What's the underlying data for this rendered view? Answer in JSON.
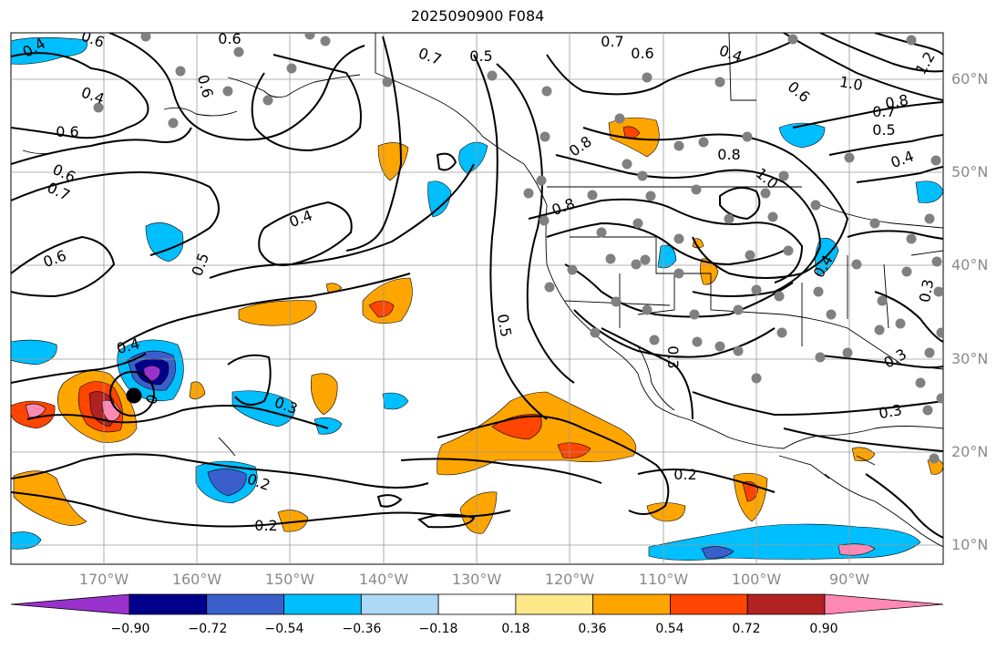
{
  "title": "2025090900 F084",
  "lat_labels": [
    "60°N",
    "50°N",
    "40°N",
    "30°N",
    "20°N",
    "10°N"
  ],
  "lon_labels": [
    "170°W",
    "160°W",
    "150°W",
    "140°W",
    "130°W",
    "120°W",
    "110°W",
    "100°W",
    "90°W"
  ],
  "colorbar": {
    "ticks": [
      "−0.90",
      "−0.72",
      "−0.54",
      "−0.36",
      "−0.18",
      "0.18",
      "0.36",
      "0.54",
      "0.72",
      "0.90"
    ],
    "colors": [
      "#9932cc",
      "#00008b",
      "#3a5fcd",
      "#00bfff",
      "#add8f6",
      "#ffffff",
      "#ffe88a",
      "#ffa500",
      "#ff4500",
      "#b22222",
      "#ff89b4"
    ]
  },
  "contour_labels": [
    {
      "text": "0.4"
    },
    {
      "text": "0.6"
    },
    {
      "text": "0.6"
    },
    {
      "text": "0.7"
    },
    {
      "text": "0.5"
    },
    {
      "text": "0.7"
    },
    {
      "text": "0.6"
    },
    {
      "text": "0.4"
    },
    {
      "text": "0.6"
    },
    {
      "text": "1.0"
    },
    {
      "text": "1.2"
    },
    {
      "text": "0.8"
    },
    {
      "text": "0.7"
    },
    {
      "text": "0.5"
    },
    {
      "text": "0.4"
    },
    {
      "text": "0.4"
    },
    {
      "text": "0.6"
    },
    {
      "text": "0.6"
    },
    {
      "text": "0.7"
    },
    {
      "text": "0.6"
    },
    {
      "text": "0.4"
    },
    {
      "text": "0.5"
    },
    {
      "text": "0.6"
    },
    {
      "text": "0.8"
    },
    {
      "text": "0.8"
    },
    {
      "text": "0.8"
    },
    {
      "text": "1.0"
    },
    {
      "text": "0.5"
    },
    {
      "text": "0.4"
    },
    {
      "text": "0.3"
    },
    {
      "text": "0.3"
    },
    {
      "text": "0.3"
    },
    {
      "text": "0.3"
    },
    {
      "text": "0.2"
    },
    {
      "text": "0.2"
    },
    {
      "text": "0.2"
    },
    {
      "text": "0.4"
    },
    {
      "text": "0"
    },
    {
      "text": "0.3"
    }
  ]
}
